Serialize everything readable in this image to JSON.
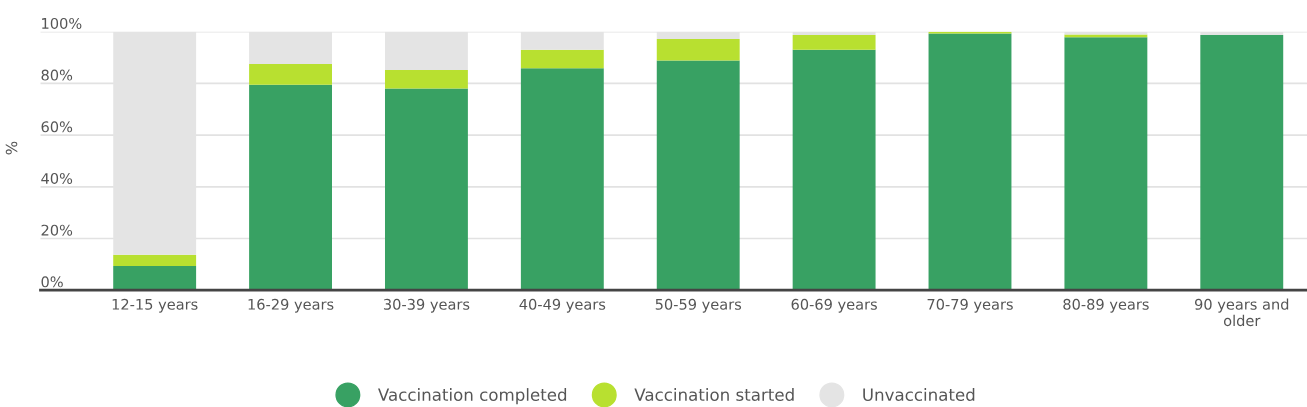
{
  "chart_data": {
    "type": "bar",
    "stacked": true,
    "ylabel": "%",
    "categories": [
      "12-15 years",
      "16-29 years",
      "30-39 years",
      "40-49 years",
      "50-59 years",
      "60-69 years",
      "70-79 years",
      "80-89 years",
      "90 years and\nolder"
    ],
    "series": [
      {
        "name": "Vaccination completed",
        "color": "#38a163",
        "values": [
          9.4,
          79.5,
          78,
          85.9,
          88.9,
          93,
          99.3,
          97.9,
          98.7
        ]
      },
      {
        "name": "Vaccination started",
        "color": "#b8e030",
        "values": [
          4.3,
          8,
          7.2,
          7.1,
          8.3,
          5.7,
          0.7,
          1,
          null
        ]
      },
      {
        "name": "Unvaccinated",
        "color": "#e4e4e4",
        "values": [
          86.3,
          12.5,
          14.8,
          7,
          2.8,
          1.3,
          null,
          1.1,
          1.3
        ]
      }
    ],
    "ylim": [
      0,
      100
    ],
    "yticks": [
      {
        "value": 0,
        "label": "0%"
      },
      {
        "value": 20,
        "label": "20%"
      },
      {
        "value": 40,
        "label": "40%"
      },
      {
        "value": 60,
        "label": "60%"
      },
      {
        "value": 80,
        "label": "80%"
      },
      {
        "value": 100,
        "label": "100%"
      }
    ],
    "grid": "y",
    "legend": "bottom",
    "marker": "circle"
  }
}
